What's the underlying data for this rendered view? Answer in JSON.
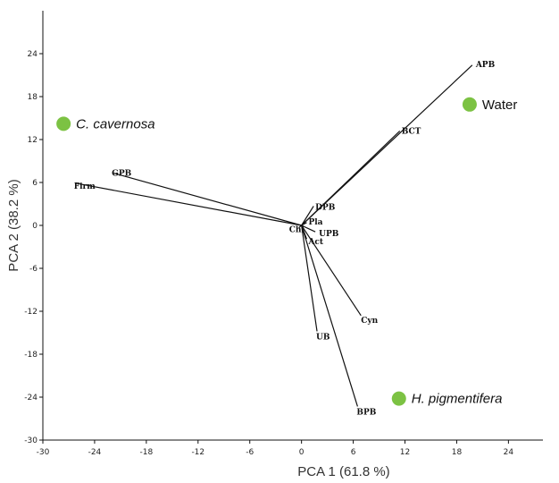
{
  "chart_data": {
    "type": "scatter",
    "title": "",
    "xlabel": "PCA 1  (61.8 %)",
    "ylabel": "PCA 2 (38.2 %)",
    "xlim": [
      -30,
      28
    ],
    "ylim": [
      -30,
      30
    ],
    "xticks": [
      -30,
      -24,
      -18,
      -12,
      -6,
      0,
      6,
      12,
      18,
      24
    ],
    "yticks": [
      -30,
      -24,
      -18,
      -12,
      -6,
      0,
      6,
      12,
      18,
      24
    ],
    "grid": false,
    "point_color": "#7cc243",
    "vector_color": "#111111",
    "points": [
      {
        "label": "C. cavernosa",
        "italic": true,
        "x": -27.6,
        "y": 14.2
      },
      {
        "label": "Water",
        "italic": false,
        "x": 19.5,
        "y": 16.9
      },
      {
        "label": "H. pigmentifera",
        "italic": true,
        "x": 11.3,
        "y": -24.2
      }
    ],
    "vectors": [
      {
        "label": "APB",
        "x": 19.8,
        "y": 22.4
      },
      {
        "label": "BCT",
        "x": 11.4,
        "y": 13.2
      },
      {
        "label": "GPB",
        "x": -21.8,
        "y": 7.3
      },
      {
        "label": "Firm",
        "x": -26.2,
        "y": 5.9
      },
      {
        "label": "DPB",
        "x": 1.4,
        "y": 2.7
      },
      {
        "label": "Pla",
        "x": 0.6,
        "y": 0.4
      },
      {
        "label": "Chl",
        "x": -0.3,
        "y": -0.3
      },
      {
        "label": "UPB",
        "x": 1.6,
        "y": -0.9
      },
      {
        "label": "Act",
        "x": 0.6,
        "y": -1.9
      },
      {
        "label": "Cyn",
        "x": 6.9,
        "y": -12.6
      },
      {
        "label": "UB",
        "x": 1.8,
        "y": -14.8
      },
      {
        "label": "BPB",
        "x": 6.5,
        "y": -25.3
      }
    ]
  }
}
